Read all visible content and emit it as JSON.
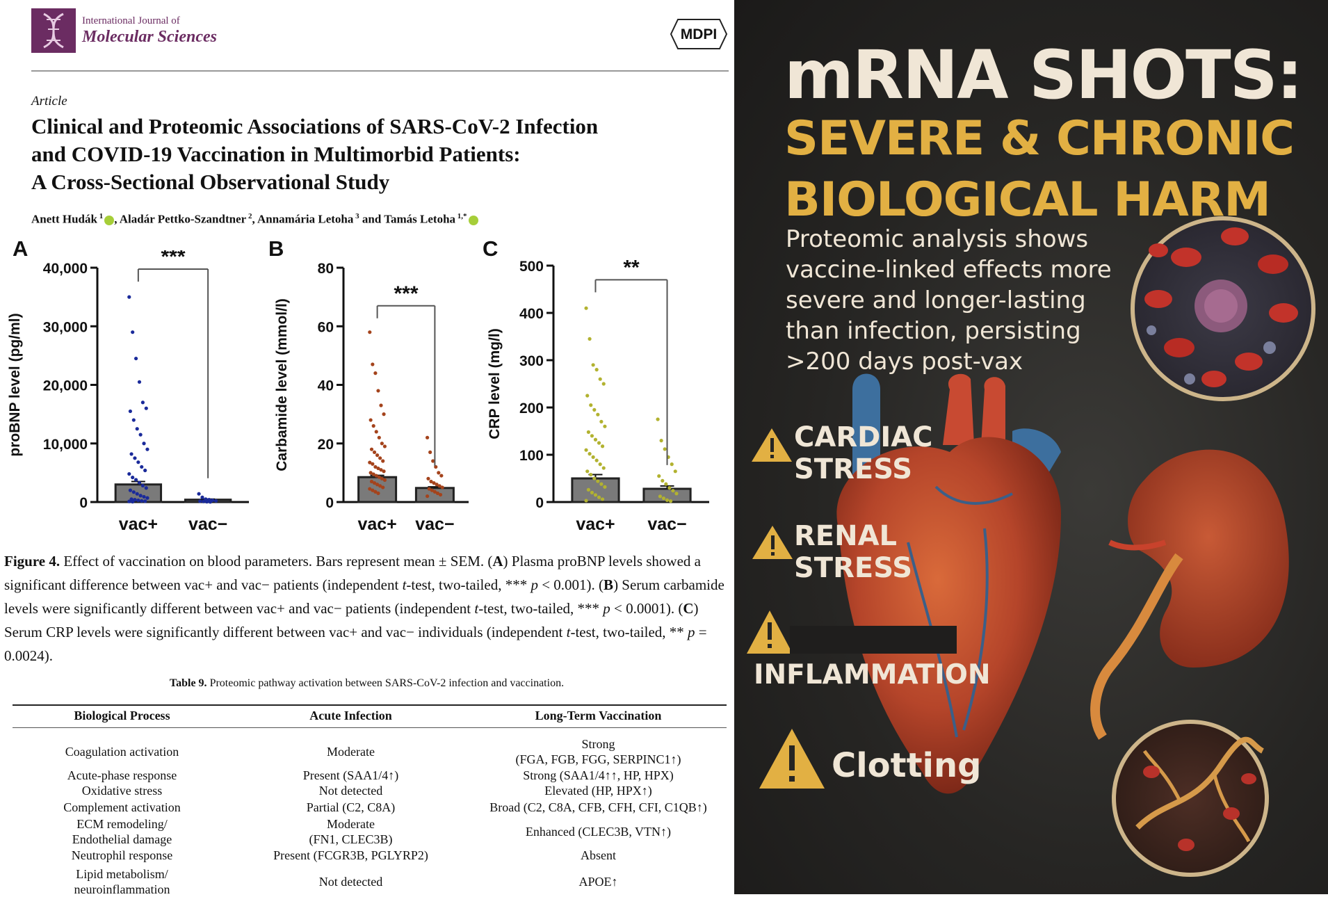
{
  "paper": {
    "journal_line1": "International Journal of",
    "journal_line2": "Molecular Sciences",
    "publisher": "MDPI",
    "article_type": "Article",
    "title_line1": "Clinical and Proteomic Associations of SARS-CoV-2 Infection",
    "title_line2": "and COVID-19 Vaccination in Multimorbid Patients:",
    "title_line3": "A Cross-Sectional Observational Study",
    "authors": [
      {
        "name": "Anett Hudák",
        "sup": "1",
        "orcid": true,
        "sep": ", "
      },
      {
        "name": "Aladár Pettko-Szandtner",
        "sup": "2",
        "orcid": false,
        "sep": ", "
      },
      {
        "name": "Annamária Letoha",
        "sup": "3",
        "orcid": false,
        "sep": " and "
      },
      {
        "name": "Tamás Letoha",
        "sup": "1,*",
        "orcid": true,
        "sep": ""
      }
    ]
  },
  "chart_data": [
    {
      "panel": "A",
      "type": "bar",
      "categories": [
        "vac+",
        "vac−"
      ],
      "values": [
        3000,
        400
      ],
      "error": [
        500,
        100
      ],
      "ylabel": "proBNP level (pg/ml)",
      "ylim": [
        0,
        40000
      ],
      "yticks": [
        0,
        10000,
        20000,
        30000,
        40000
      ],
      "ytick_labels": [
        "0",
        "10,000",
        "20,000",
        "30,000",
        "40,000"
      ],
      "significance": "***",
      "point_color": "#1a2a9a",
      "points": [
        [
          35000,
          29000,
          24500,
          20500,
          17000,
          16000,
          15500,
          14000,
          12500,
          11500,
          10000,
          9000,
          8200,
          7500,
          6800,
          6000,
          5400,
          4800,
          4200,
          3800,
          3300,
          2800,
          2400,
          2000,
          1700,
          1400,
          1100,
          900,
          700,
          500,
          400,
          300,
          200,
          150,
          100,
          60
        ],
        [
          1400,
          800,
          500,
          400,
          300,
          200,
          150,
          100,
          60,
          30
        ]
      ]
    },
    {
      "panel": "B",
      "type": "bar",
      "categories": [
        "vac+",
        "vac−"
      ],
      "values": [
        8.5,
        4.8
      ],
      "error": [
        0.6,
        0.4
      ],
      "ylabel": "Carbamide level (mmol/l)",
      "ylim": [
        0,
        80
      ],
      "yticks": [
        0,
        20,
        40,
        60,
        80
      ],
      "ytick_labels": [
        "0",
        "20",
        "40",
        "60",
        "80"
      ],
      "significance": "***",
      "point_color": "#a4431c",
      "points": [
        [
          58,
          47,
          44,
          38,
          33,
          30,
          28,
          26,
          24,
          22,
          20,
          19,
          18,
          17,
          16,
          15,
          14,
          13.5,
          13,
          12,
          11.5,
          11,
          10.5,
          10,
          9.5,
          9,
          8.5,
          8,
          7.5,
          7,
          6.5,
          6,
          5.5,
          5,
          4.5,
          4,
          3.5,
          3
        ],
        [
          22,
          17,
          14,
          12,
          10,
          9,
          8,
          7,
          6.5,
          6,
          5.5,
          5,
          4.5,
          4,
          3.5,
          3,
          2.5,
          2
        ]
      ]
    },
    {
      "panel": "C",
      "type": "bar",
      "categories": [
        "vac+",
        "vac−"
      ],
      "values": [
        50,
        28
      ],
      "error": [
        8,
        6
      ],
      "ylabel": "CRP level (mg/l)",
      "ylim": [
        0,
        500
      ],
      "yticks": [
        0,
        100,
        200,
        300,
        400,
        500
      ],
      "ytick_labels": [
        "0",
        "100",
        "200",
        "300",
        "400",
        "500"
      ],
      "significance": "**",
      "point_color": "#b2b230",
      "points": [
        [
          410,
          345,
          290,
          280,
          260,
          250,
          225,
          205,
          195,
          185,
          170,
          160,
          148,
          140,
          132,
          125,
          118,
          110,
          102,
          95,
          88,
          80,
          72,
          65,
          58,
          50,
          44,
          38,
          32,
          26,
          20,
          15,
          10,
          6,
          3
        ],
        [
          175,
          130,
          112,
          95,
          80,
          65,
          55,
          45,
          38,
          30,
          24,
          18,
          12,
          8,
          4,
          2
        ]
      ]
    }
  ],
  "caption": {
    "label": "Figure 4.",
    "text1": " Effect of vaccination on blood parameters. Bars represent mean ± SEM. (",
    "A": "A",
    "text2": ") Plasma proBNP levels showed a significant difference between vac+ and vac− patients (independent ",
    "t": "t",
    "text3": "-test, two-tailed, *** ",
    "p": "p",
    "text4": " < 0.001). (",
    "B": "B",
    "text5": ") Serum carbamide levels were significantly different between vac+ and vac− patients (independent ",
    "text6": "-test, two-tailed, *** ",
    "text7": " < 0.0001). (",
    "C": "C",
    "text8": ") Serum CRP levels were significantly different between vac+ and vac− individuals (independent ",
    "text9": "-test, two-tailed, ** ",
    "text10": " = 0.0024)."
  },
  "table": {
    "caption_label": "Table 9.",
    "caption_text": " Proteomic pathway activation between SARS-CoV-2 infection and vaccination.",
    "headers": [
      "Biological Process",
      "Acute Infection",
      "Long-Term Vaccination"
    ],
    "rows": [
      {
        "process": "Coagulation activation",
        "infection": "Moderate",
        "vaccination": "Strong\n(FGA, FGB, FGG, SERPINC1↑)"
      },
      {
        "process": "Acute-phase response",
        "infection": "Present (SAA1/4↑)",
        "vaccination": "Strong (SAA1/4↑↑, HP, HPX)"
      },
      {
        "process": "Oxidative stress",
        "infection": "Not detected",
        "vaccination": "Elevated (HP, HPX↑)"
      },
      {
        "process": "Complement activation",
        "infection": "Partial (C2, C8A)",
        "vaccination": "Broad (C2, C8A, CFB, CFH, CFI, C1QB↑)"
      },
      {
        "process": "ECM remodeling/\nEndothelial damage",
        "infection": "Moderate\n(FN1, CLEC3B)",
        "vaccination": "Enhanced (CLEC3B, VTN↑)"
      },
      {
        "process": "Neutrophil response",
        "infection": "Present (FCGR3B, PGLYRP2)",
        "vaccination": "Absent"
      },
      {
        "process": "Lipid metabolism/\nneuroinflammation",
        "infection": "Not detected",
        "vaccination": "APOE↑"
      }
    ]
  },
  "poster": {
    "headline1": "mRNA SHOTS:",
    "headline2": "SEVERE & CHRONIC",
    "headline3": "BIOLOGICAL HARM",
    "subtext": "Proteomic analysis shows vaccine-linked effects more severe and longer-lasting than infection, persisting >200 days post-vax",
    "warnings": [
      {
        "line1": "CARDIAC",
        "line2": "STRESS"
      },
      {
        "line1": "RENAL",
        "line2": "STRESS"
      },
      {
        "line1": "INFLAMMATION",
        "line2": ""
      },
      {
        "line1": "Clotting",
        "line2": ""
      }
    ],
    "colors": {
      "headline": "#f0e6d6",
      "accent": "#e2b043",
      "background": "#262523"
    }
  }
}
